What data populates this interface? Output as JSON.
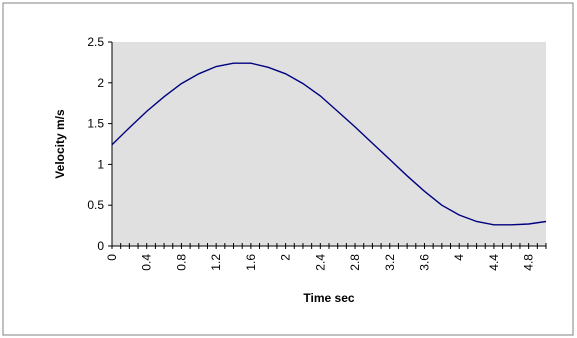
{
  "chart_data": {
    "type": "line",
    "title": "",
    "xlabel": "Time sec",
    "ylabel": "Velocity  m/s",
    "xlim": [
      0,
      5
    ],
    "ylim": [
      0,
      2.5
    ],
    "grid": false,
    "legend": "none",
    "plot_background": "#e0e0e0",
    "line_color": "#000080",
    "y_ticks": [
      "0",
      "0.5",
      "1",
      "1.5",
      "2",
      "2.5"
    ],
    "x_tick_labels": [
      "0",
      "0.4",
      "0.8",
      "1.2",
      "1.6",
      "2",
      "2.4",
      "2.8",
      "3.2",
      "3.6",
      "4",
      "4.4",
      "4.8"
    ],
    "x_tick_values": [
      0,
      0.4,
      0.8,
      1.2,
      1.6,
      2.0,
      2.4,
      2.8,
      3.2,
      3.6,
      4.0,
      4.4,
      4.8
    ],
    "series": [
      {
        "x": [
          0,
          0.2,
          0.4,
          0.6,
          0.8,
          1.0,
          1.2,
          1.4,
          1.6,
          1.8,
          2.0,
          2.2,
          2.4,
          2.6,
          2.8,
          3.0,
          3.2,
          3.4,
          3.6,
          3.8,
          4.0,
          4.2,
          4.4,
          4.6,
          4.8,
          5.0
        ],
        "y": [
          1.24,
          1.45,
          1.65,
          1.83,
          1.99,
          2.11,
          2.2,
          2.24,
          2.24,
          2.19,
          2.11,
          1.99,
          1.84,
          1.65,
          1.46,
          1.26,
          1.06,
          0.86,
          0.67,
          0.5,
          0.38,
          0.3,
          0.26,
          0.26,
          0.27,
          0.3
        ]
      }
    ]
  }
}
